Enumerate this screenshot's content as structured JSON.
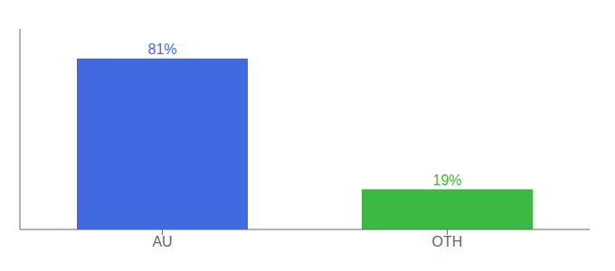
{
  "chart_data": {
    "type": "bar",
    "categories": [
      "AU",
      "OTH"
    ],
    "values": [
      81,
      19
    ],
    "value_labels": [
      "81%",
      "19%"
    ],
    "colors": [
      "#4169e1",
      "#3cb943"
    ],
    "ylim": [
      0,
      95
    ],
    "data_labels": true,
    "tick_labels": "x"
  }
}
